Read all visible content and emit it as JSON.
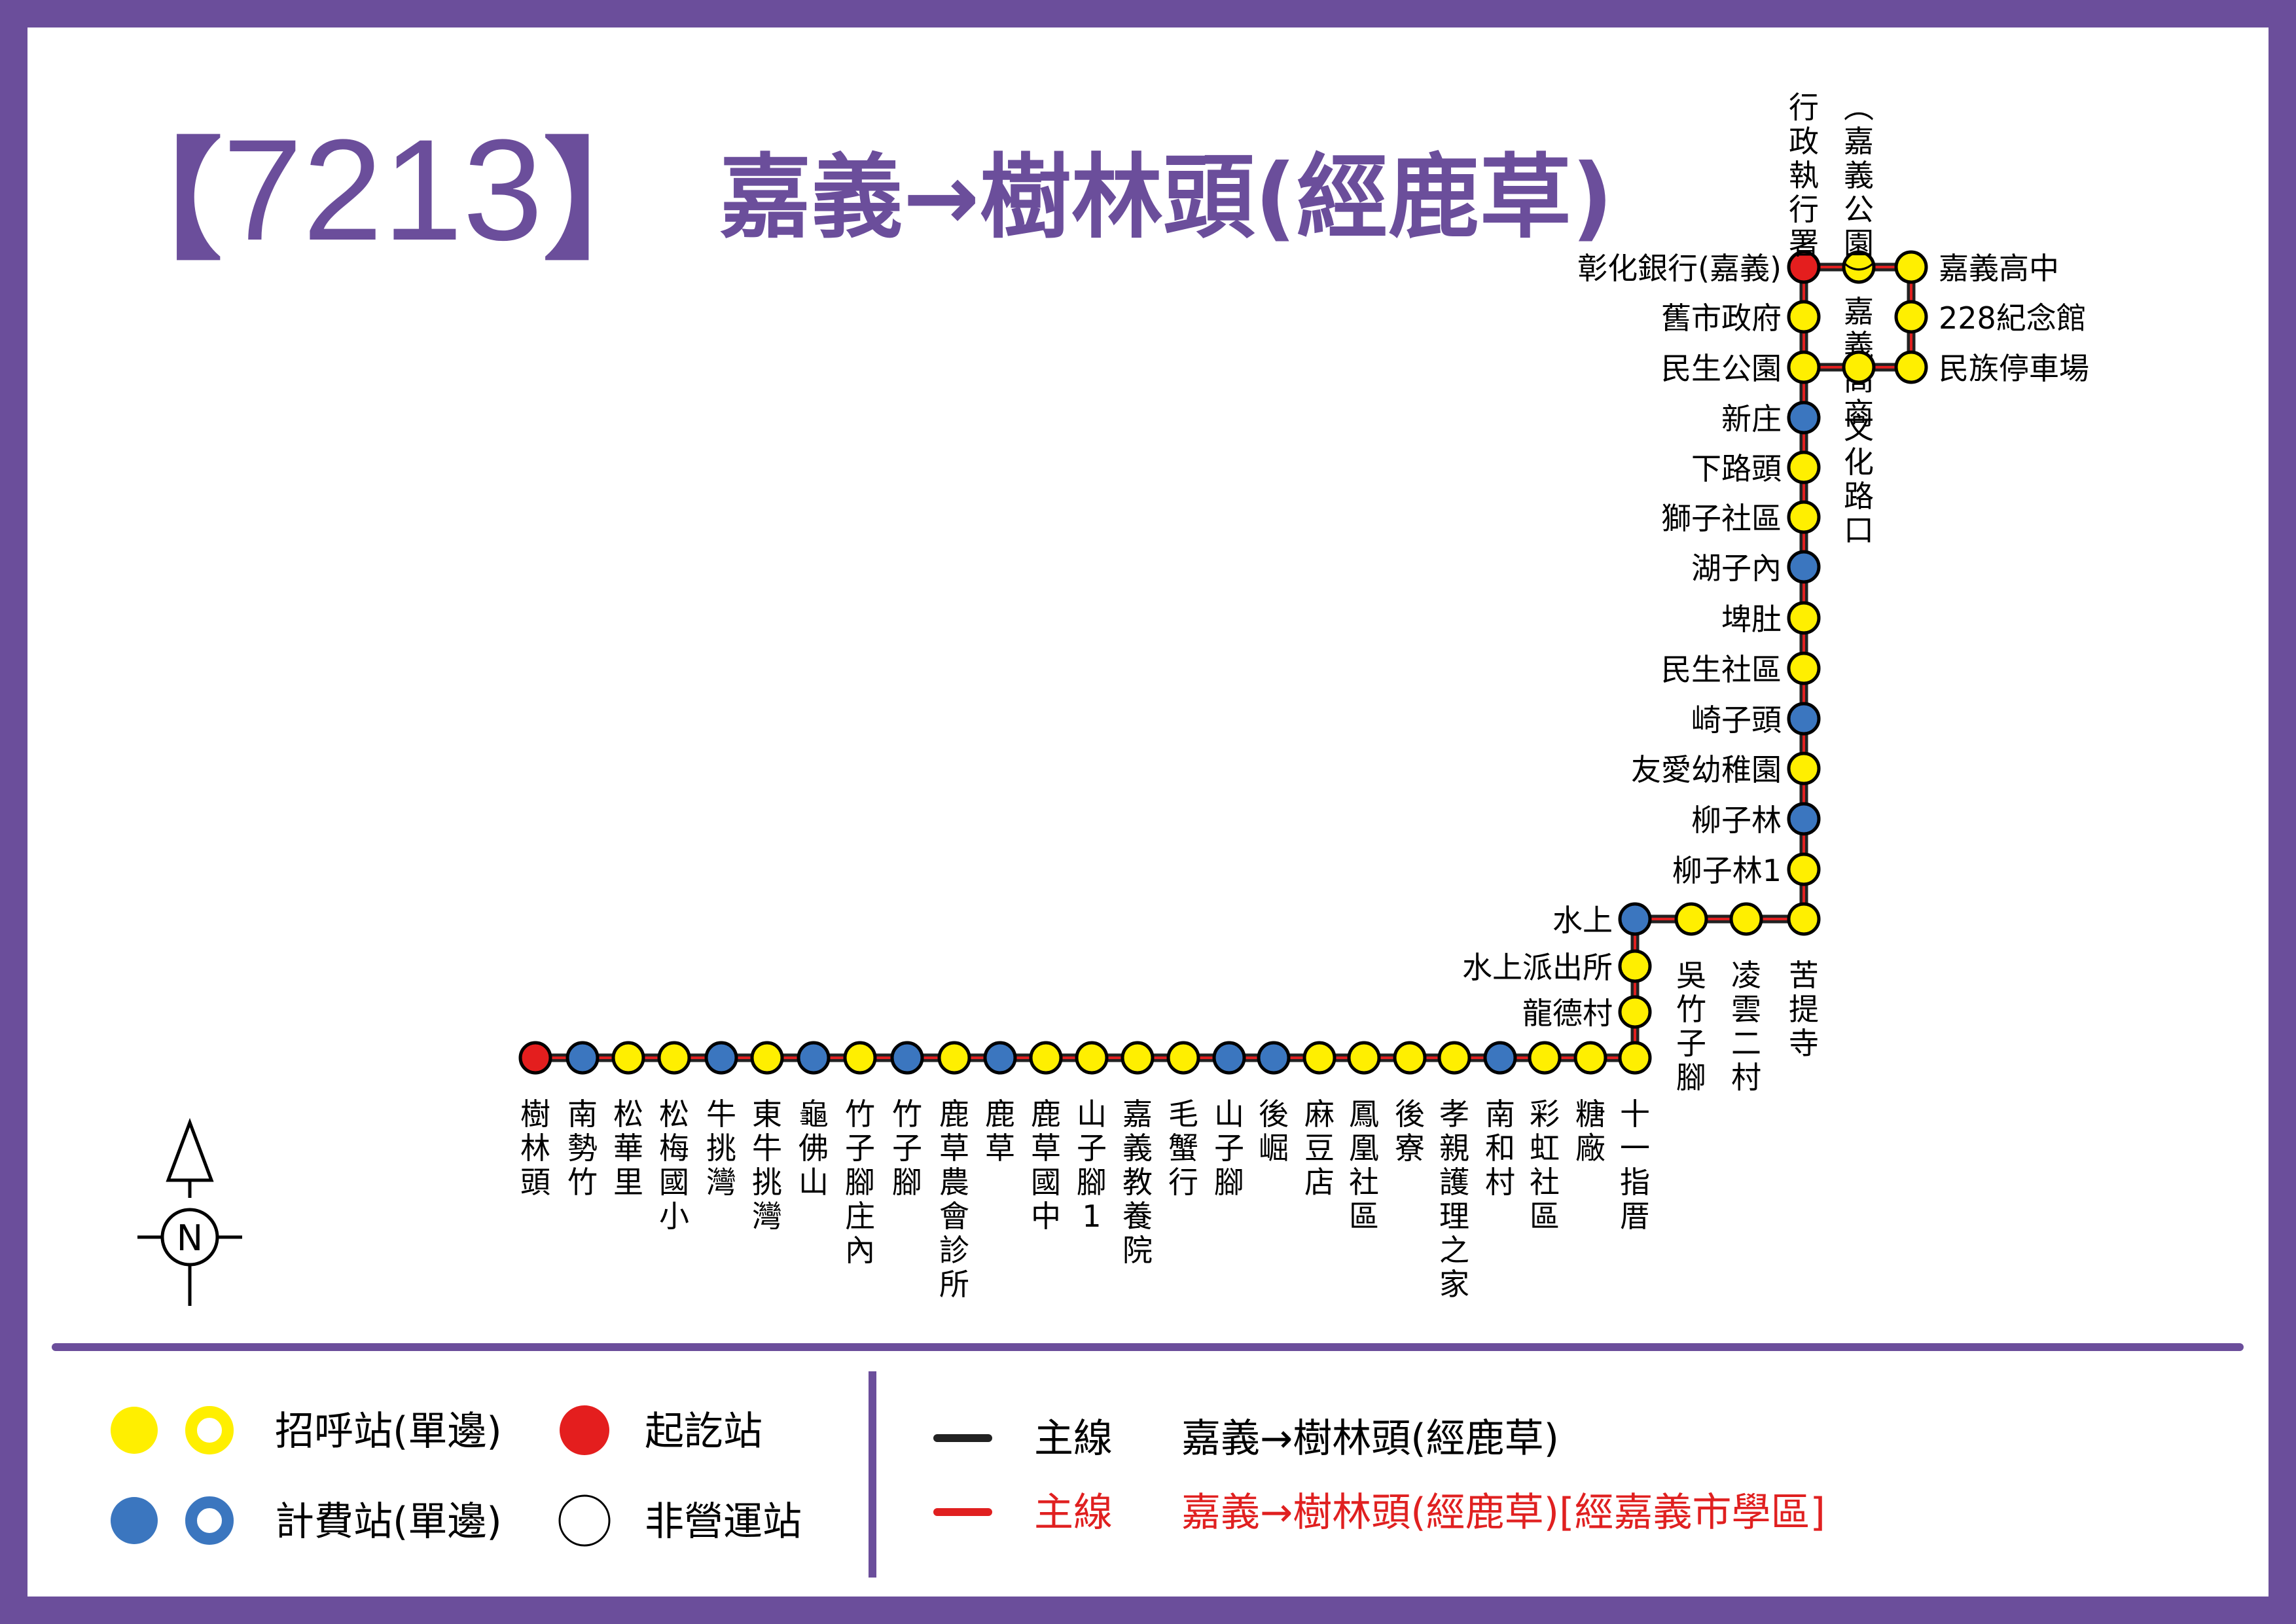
{
  "title": {
    "bracket_left": "【",
    "route_number": "7213",
    "bracket_right": "】",
    "route_name": "嘉義→樹林頭(經鹿草)"
  },
  "colors": {
    "frame": "#6b4e9b",
    "fare_stage": "#3b76bf",
    "flag_stop": "#ffef00",
    "terminal": "#e41e1e",
    "main_line": "#222222",
    "school_line": "#e02020"
  },
  "stations": [
    {
      "name": "樹林頭",
      "type": "terminal"
    },
    {
      "name": "南勢竹",
      "type": "fare"
    },
    {
      "name": "松華里",
      "type": "flag"
    },
    {
      "name": "松梅國小",
      "type": "flag"
    },
    {
      "name": "牛挑灣",
      "type": "fare"
    },
    {
      "name": "東牛挑灣",
      "type": "flag"
    },
    {
      "name": "龜佛山",
      "type": "fare"
    },
    {
      "name": "竹子腳庄內",
      "type": "flag"
    },
    {
      "name": "竹子腳",
      "type": "fare"
    },
    {
      "name": "鹿草農會診所",
      "type": "flag"
    },
    {
      "name": "鹿草",
      "type": "fare"
    },
    {
      "name": "鹿草國中",
      "type": "flag"
    },
    {
      "name": "山子腳1",
      "type": "flag"
    },
    {
      "name": "嘉義教養院",
      "type": "flag"
    },
    {
      "name": "毛蟹行",
      "type": "flag"
    },
    {
      "name": "山子腳",
      "type": "fare"
    },
    {
      "name": "後崛",
      "type": "fare"
    },
    {
      "name": "麻豆店",
      "type": "flag"
    },
    {
      "name": "鳳凰社區",
      "type": "flag"
    },
    {
      "name": "後寮",
      "type": "flag"
    },
    {
      "name": "孝親護理之家",
      "type": "flag"
    },
    {
      "name": "南和村",
      "type": "fare"
    },
    {
      "name": "彩虹社區",
      "type": "flag"
    },
    {
      "name": "糖廠",
      "type": "flag"
    },
    {
      "name": "十一指厝",
      "type": "flag"
    },
    {
      "name": "龍德村",
      "type": "flag"
    },
    {
      "name": "水上派出所",
      "type": "flag"
    },
    {
      "name": "水上",
      "type": "fare"
    },
    {
      "name": "吳竹子腳",
      "type": "flag"
    },
    {
      "name": "凌雲二村",
      "type": "flag"
    },
    {
      "name": "苦提寺",
      "type": "flag"
    },
    {
      "name": "柳子林1",
      "type": "flag"
    },
    {
      "name": "柳子林",
      "type": "fare"
    },
    {
      "name": "友愛幼稚園",
      "type": "flag"
    },
    {
      "name": "崎子頭",
      "type": "fare"
    },
    {
      "name": "民生社區",
      "type": "flag"
    },
    {
      "name": "埤肚",
      "type": "flag"
    },
    {
      "name": "湖子內",
      "type": "fare"
    },
    {
      "name": "獅子社區",
      "type": "flag"
    },
    {
      "name": "下路頭",
      "type": "flag"
    },
    {
      "name": "新庄",
      "type": "fare"
    },
    {
      "name": "民生公園",
      "type": "flag"
    },
    {
      "name": "舊市政府",
      "type": "flag"
    },
    {
      "name": "彰化銀行(嘉義)",
      "type": "terminal"
    },
    {
      "name": "行政執行署",
      "type": "flag"
    },
    {
      "name": "(嘉義公園)嘉義高商",
      "type": "flag"
    },
    {
      "name": "嘉義高中",
      "type": "flag"
    },
    {
      "name": "228紀念館",
      "type": "flag"
    },
    {
      "name": "民族停車場",
      "type": "flag"
    },
    {
      "name": "文化路口",
      "type": "flag"
    }
  ],
  "north_arrow": {
    "label": "N"
  },
  "legend": {
    "flag_stop": "招呼站(單邊)",
    "fare_stage": "計費站(單邊)",
    "terminal": "起訖站",
    "non_operating": "非營運站",
    "main_line_label": "主線",
    "main_line_route": "嘉義→樹林頭(經鹿草)",
    "school_line_label": "主線",
    "school_line_route": "嘉義→樹林頭(經鹿草)[經嘉義市學區]"
  }
}
